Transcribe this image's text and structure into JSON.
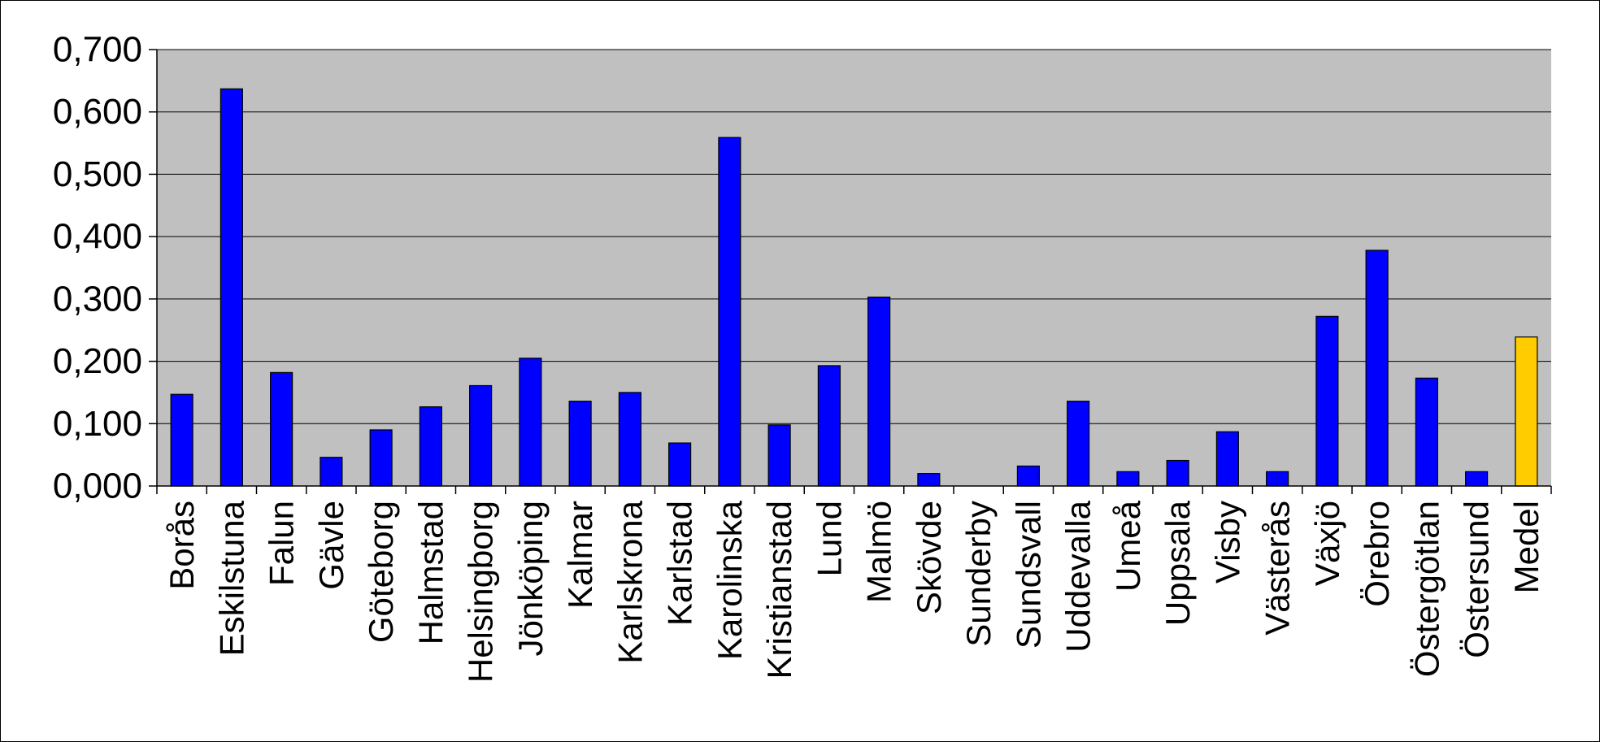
{
  "chart_data": {
    "type": "bar",
    "title": "",
    "xlabel": "",
    "ylabel": "",
    "ylim": [
      0,
      0.7
    ],
    "yticks": [
      0,
      0.1,
      0.2,
      0.3,
      0.4,
      0.5,
      0.6,
      0.7
    ],
    "ytick_labels": [
      "0,000",
      "0,100",
      "0,200",
      "0,300",
      "0,400",
      "0,500",
      "0,600",
      "0,700"
    ],
    "grid": true,
    "legend": "none",
    "plot_background": "#c0c0c0",
    "bar_color": "#0000ff",
    "highlight_color": "#ffcc00",
    "highlight_category": "Medel",
    "categories": [
      "Borås",
      "Eskilstuna",
      "Falun",
      "Gävle",
      "Göteborg",
      "Halmstad",
      "Helsingborg",
      "Jönköping",
      "Kalmar",
      "Karlskrona",
      "Karlstad",
      "Karolinska",
      "Kristianstad",
      "Lund",
      "Malmö",
      "Skövde",
      "Sunderby",
      "Sundsvall",
      "Uddevalla",
      "Umeå",
      "Uppsala",
      "Visby",
      "Västerås",
      "Växjö",
      "Örebro",
      "Östergötlan",
      "Östersund",
      "Medel"
    ],
    "values": [
      0.147,
      0.637,
      0.182,
      0.046,
      0.09,
      0.127,
      0.161,
      0.205,
      0.136,
      0.15,
      0.069,
      0.559,
      0.098,
      0.193,
      0.303,
      0.02,
      0.0,
      0.032,
      0.136,
      0.023,
      0.041,
      0.087,
      0.023,
      0.272,
      0.378,
      0.173,
      0.023,
      0.239
    ]
  }
}
